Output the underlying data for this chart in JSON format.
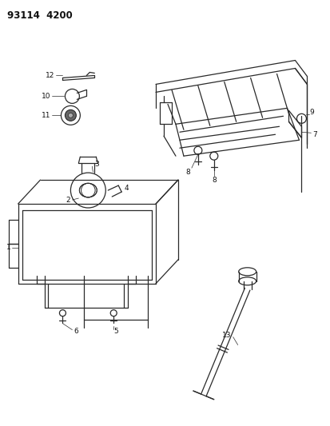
{
  "title": "93114  4200",
  "bg_color": "#ffffff",
  "line_color": "#2a2a2a",
  "text_color": "#111111",
  "fig_width": 4.14,
  "fig_height": 5.33,
  "dpi": 100
}
